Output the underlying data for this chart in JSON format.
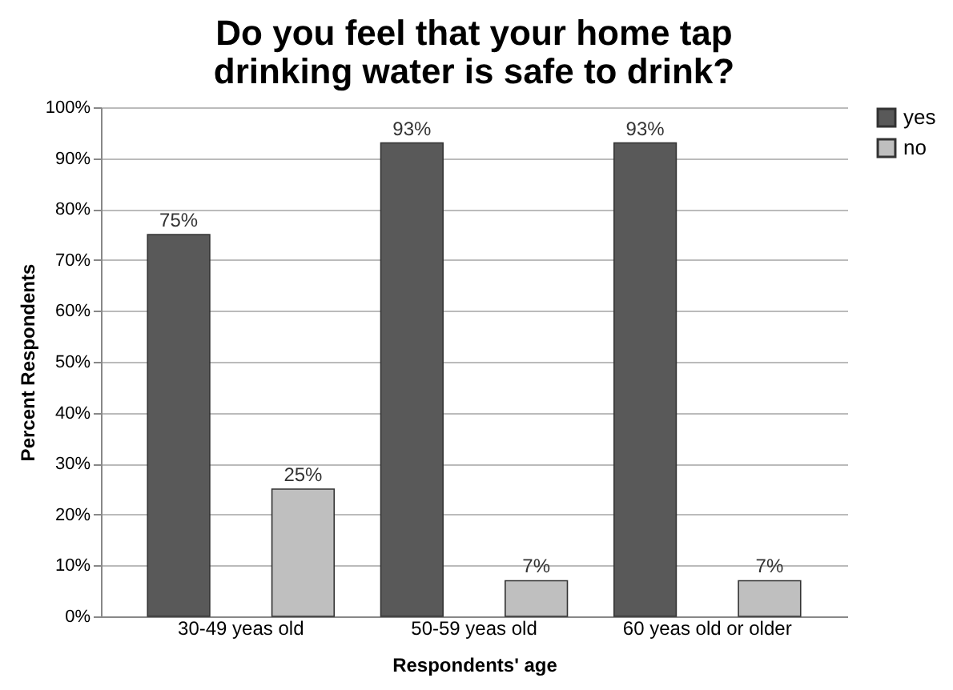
{
  "chart_data": {
    "type": "bar",
    "title": "Do you feel that your home tap drinking water is safe to drink?",
    "xlabel": "Respondents' age",
    "ylabel": "Percent Respondents",
    "categories": [
      "30-49 yeas old",
      "50-59 yeas old",
      "60 yeas old or older"
    ],
    "series": [
      {
        "name": "yes",
        "color": "#595959",
        "values": [
          75,
          93,
          93
        ],
        "value_labels": [
          "75%",
          "93%",
          "93%"
        ]
      },
      {
        "name": "no",
        "color": "#bfbfbf",
        "values": [
          25,
          7,
          7
        ],
        "value_labels": [
          "25%",
          "7%",
          "7%"
        ]
      }
    ],
    "ylim": [
      0,
      100
    ],
    "yticks": [
      {
        "value": 0,
        "label": "0%"
      },
      {
        "value": 10,
        "label": "10%"
      },
      {
        "value": 20,
        "label": "20%"
      },
      {
        "value": 30,
        "label": "30%"
      },
      {
        "value": 40,
        "label": "40%"
      },
      {
        "value": 50,
        "label": "50%"
      },
      {
        "value": 60,
        "label": "60%"
      },
      {
        "value": 70,
        "label": "70%"
      },
      {
        "value": 80,
        "label": "80%"
      },
      {
        "value": 90,
        "label": "90%"
      },
      {
        "value": 100,
        "label": "100%"
      }
    ],
    "grid": "y",
    "legend": "right"
  }
}
